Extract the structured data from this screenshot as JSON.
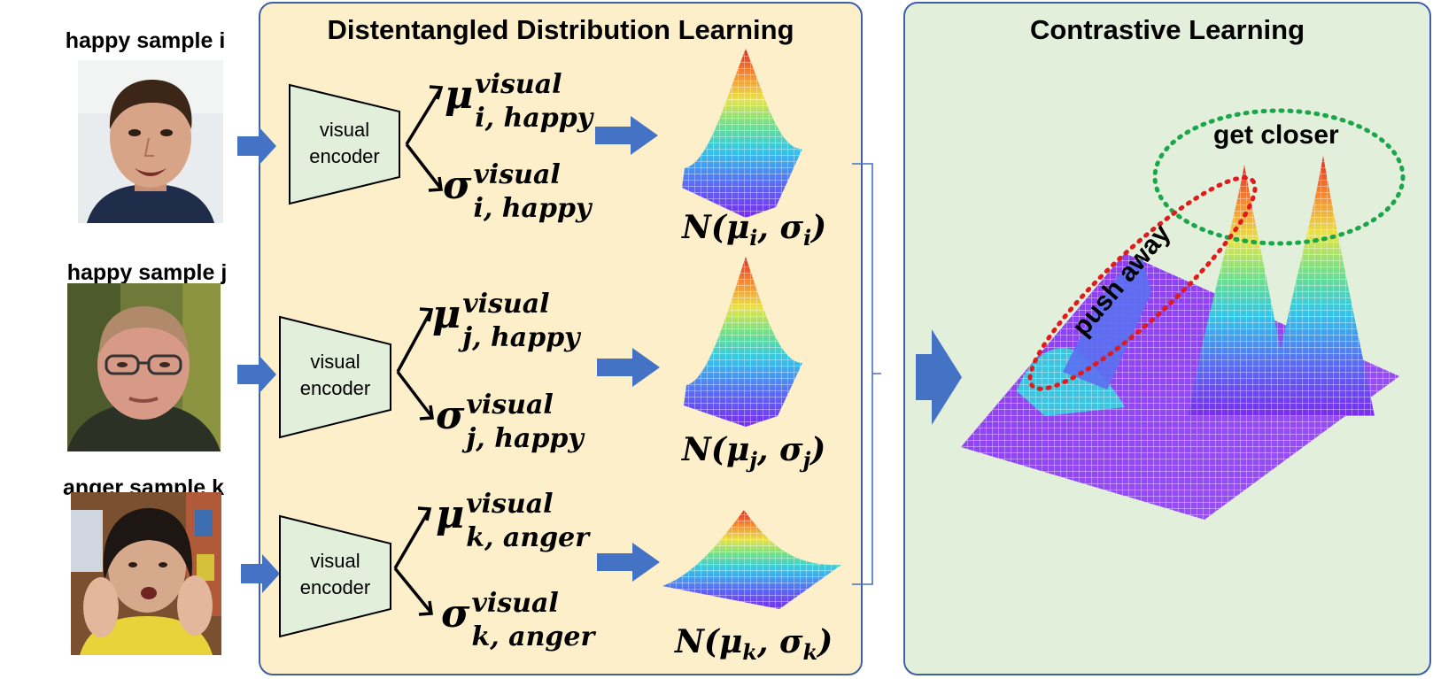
{
  "samples": [
    {
      "label": "happy sample i"
    },
    {
      "label": "happy sample j"
    },
    {
      "label": "anger sample k"
    }
  ],
  "left_panel": {
    "title": "Distentangled Distribution Learning"
  },
  "right_panel": {
    "title": "Contrastive Learning"
  },
  "encoder": {
    "line1": "visual",
    "line2": "encoder"
  },
  "rows": [
    {
      "mu_sup": "visual",
      "mu_sub": "i, happy",
      "sigma_sup": "visual",
      "sigma_sub": "i, happy",
      "dist": "N(μ",
      "dist_sub1": "i",
      "dist_mid": ", σ",
      "dist_sub2": "i",
      "dist_end": ")"
    },
    {
      "mu_sup": "visual",
      "mu_sub": "j, happy",
      "sigma_sup": "visual",
      "sigma_sub": "j, happy",
      "dist": "N(μ",
      "dist_sub1": "j",
      "dist_mid": ", σ",
      "dist_sub2": "j",
      "dist_end": ")"
    },
    {
      "mu_sup": "visual",
      "mu_sub": "k, anger",
      "sigma_sup": "visual",
      "sigma_sub": "k, anger",
      "dist": "N(μ",
      "dist_sub1": "k",
      "dist_mid": ", σ",
      "dist_sub2": "k",
      "dist_end": ")"
    }
  ],
  "symbols": {
    "mu": "μ",
    "sigma": "σ"
  },
  "annotations": {
    "get_closer": "get closer",
    "push_away": "push away"
  },
  "colors": {
    "left_bg": "#fcefc9",
    "right_bg": "#e2efda",
    "border": "#3f5fa8",
    "arrow": "#4472c4",
    "encoder_fill": "#e2efda",
    "green_ellipse": "#1aa64a",
    "red_ellipse": "#e01b1b"
  }
}
